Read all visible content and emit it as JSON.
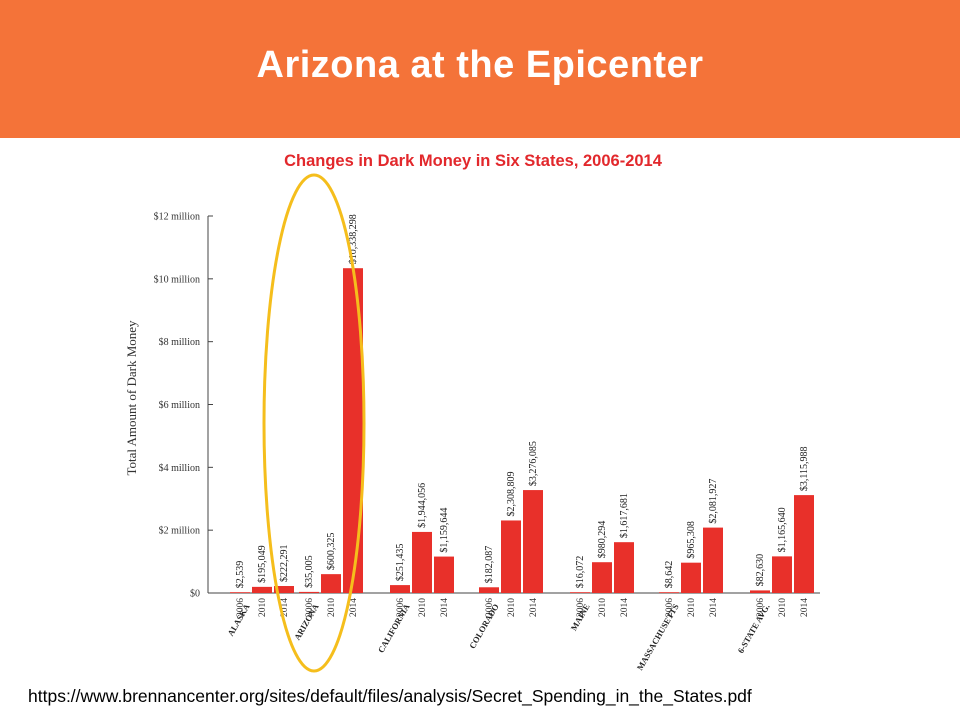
{
  "slide": {
    "title": "Arizona at the Epicenter",
    "source_url": "https://www.brennancenter.org/sites/default/files/analysis/Secret_Spending_in_the_States.pdf",
    "banner_color": "#f47339",
    "highlight_color": "#f5be1c"
  },
  "chart_data": {
    "type": "bar",
    "title": "Changes in Dark Money in Six States, 2006-2014",
    "title_color": "#e2282c",
    "bar_color": "#e8302a",
    "ylabel": "Total Amount of Dark Money",
    "ylim": [
      0,
      12000000
    ],
    "y_ticks": [
      {
        "value": 0,
        "label": "$0"
      },
      {
        "value": 2000000,
        "label": "$2 million"
      },
      {
        "value": 4000000,
        "label": "$4 million"
      },
      {
        "value": 6000000,
        "label": "$6 million"
      },
      {
        "value": 8000000,
        "label": "$8 million"
      },
      {
        "value": 10000000,
        "label": "$10 million"
      },
      {
        "value": 12000000,
        "label": "$12 million"
      }
    ],
    "highlighted_group": "ARIZONA",
    "groups": [
      {
        "name": "ALASKA",
        "bars": [
          {
            "year": "2006",
            "value": 2539,
            "label": "$2,539"
          },
          {
            "year": "2010",
            "value": 195049,
            "label": "$195,049"
          },
          {
            "year": "2014",
            "value": 222291,
            "label": "$222,291"
          }
        ]
      },
      {
        "name": "ARIZONA",
        "bars": [
          {
            "year": "2006",
            "value": 35005,
            "label": "$35,005"
          },
          {
            "year": "2010",
            "value": 600325,
            "label": "$600,325"
          },
          {
            "year": "2014",
            "value": 10338298,
            "label": "$10,338,298"
          }
        ]
      },
      {
        "name": "CALIFORNIA",
        "bars": [
          {
            "year": "2006",
            "value": 251435,
            "label": "$251,435"
          },
          {
            "year": "2010",
            "value": 1944056,
            "label": "$1,944,056"
          },
          {
            "year": "2014",
            "value": 1159644,
            "label": "$1,159,644"
          }
        ]
      },
      {
        "name": "COLORADO",
        "bars": [
          {
            "year": "2006",
            "value": 182087,
            "label": "$182,087"
          },
          {
            "year": "2010",
            "value": 2308809,
            "label": "$2,308,809"
          },
          {
            "year": "2014",
            "value": 3276085,
            "label": "$3,276,085"
          }
        ]
      },
      {
        "name": "MAINE",
        "bars": [
          {
            "year": "2006",
            "value": 16072,
            "label": "$16,072"
          },
          {
            "year": "2010",
            "value": 980294,
            "label": "$980,294"
          },
          {
            "year": "2014",
            "value": 1617681,
            "label": "$1,617,681"
          }
        ]
      },
      {
        "name": "MASSACHUSETTS",
        "bars": [
          {
            "year": "2006",
            "value": 8642,
            "label": "$8,642"
          },
          {
            "year": "2010",
            "value": 965308,
            "label": "$965,308"
          },
          {
            "year": "2014",
            "value": 2081927,
            "label": "$2,081,927"
          }
        ]
      },
      {
        "name": "6-STATE AVG.",
        "bars": [
          {
            "year": "2006",
            "value": 82630,
            "label": "$82,630"
          },
          {
            "year": "2010",
            "value": 1165640,
            "label": "$1,165,640"
          },
          {
            "year": "2014",
            "value": 3115988,
            "label": "$3,115,988"
          }
        ]
      }
    ]
  }
}
